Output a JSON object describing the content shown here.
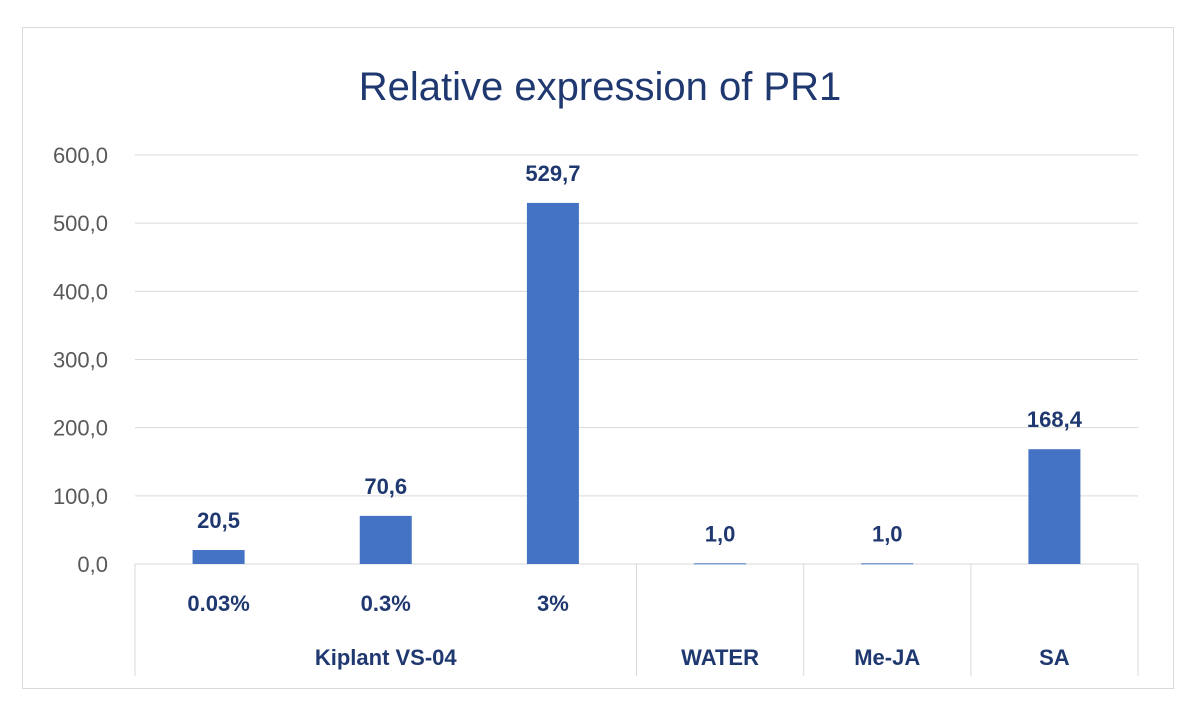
{
  "chart_data": {
    "type": "bar",
    "title": "Relative expression of PR1",
    "xlabel": "",
    "ylabel": "",
    "ylim": [
      0,
      600
    ],
    "y_ticks": [
      "0,0",
      "100,0",
      "200,0",
      "300,0",
      "400,0",
      "500,0",
      "600,0"
    ],
    "categories": [
      "0.03%",
      "0.3%",
      "3%",
      "WATER",
      "Me-JA",
      "SA"
    ],
    "groups": [
      {
        "label": "Kiplant VS-04",
        "categories": [
          "0.03%",
          "0.3%",
          "3%"
        ]
      },
      {
        "label": "WATER",
        "categories": [
          ""
        ]
      },
      {
        "label": "Me-JA",
        "categories": [
          ""
        ]
      },
      {
        "label": "SA",
        "categories": [
          ""
        ]
      }
    ],
    "values": [
      20.5,
      70.6,
      529.7,
      1.0,
      1.0,
      168.4
    ],
    "data_labels": [
      "20,5",
      "70,6",
      "529,7",
      "1,0",
      "1,0",
      "168,4"
    ],
    "bar_color": "#4472c4",
    "grid": true,
    "legend": "none"
  }
}
